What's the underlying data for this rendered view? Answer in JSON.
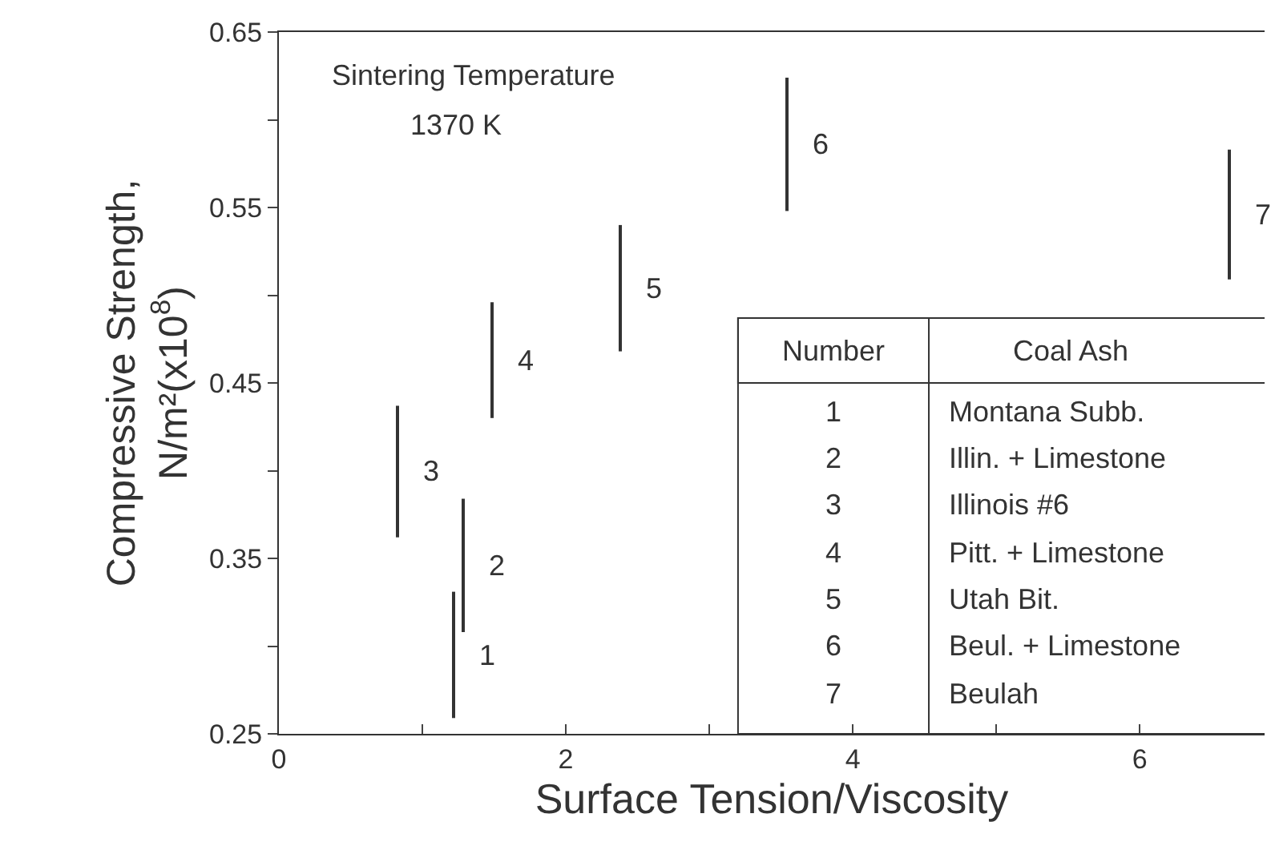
{
  "chart_data": {
    "type": "bar",
    "xlabel": "Surface Tension/Viscosity",
    "ylabel": "Compressive Strength,\nN/m²(x10$^{8}$)",
    "x": [
      0.83,
      1.22,
      1.28,
      1.49,
      2.38,
      3.54,
      6.62
    ],
    "series": [
      {
        "color": "#333333",
        "base": [
          0.362,
          0.259,
          0.308,
          0.43,
          0.468,
          0.548,
          0.509
        ],
        "values": [
          0.075,
          0.072,
          0.076,
          0.066,
          0.072,
          0.076,
          0.074
        ]
      }
    ],
    "xlim": [
      0,
      6.87
    ],
    "xticks": [
      0,
      {
        "value": 1,
        "label": null
      },
      2,
      {
        "value": 3,
        "label": null
      },
      4,
      {
        "value": 5,
        "label": null
      },
      6
    ],
    "ylim": [
      0.25,
      0.65
    ],
    "yticks": [
      0.25,
      {
        "value": 0.3,
        "label": null
      },
      0.35,
      {
        "value": 0.4,
        "label": null
      },
      0.45,
      {
        "value": 0.5,
        "label": null
      },
      0.55,
      {
        "value": 0.6,
        "label": null
      },
      0.65
    ],
    "annotations": [
      {
        "text": "3",
        "x": 0.83,
        "y": 0.4
      },
      {
        "text": "1",
        "x": 1.22,
        "y": 0.295
      },
      {
        "text": "2",
        "x": 1.28,
        "y": 0.346
      },
      {
        "text": "4",
        "x": 1.49,
        "y": 0.463
      },
      {
        "text": "5",
        "x": 2.38,
        "y": 0.504
      },
      {
        "text": "6",
        "x": 3.54,
        "y": 0.586
      },
      {
        "text": "7",
        "x": 6.62,
        "y": 0.546
      },
      "Sintering Temperature",
      "1370 K",
      "Number",
      "Coal Ash",
      "1",
      "Montana Subb.",
      "2",
      "Illin. + Limestone",
      "3",
      "Illinois #6",
      "4",
      "Pitt. + Limestone",
      "5",
      "Utah Bit.",
      "6",
      "Beul. + Limestone",
      "7",
      "Beulah"
    ]
  }
}
